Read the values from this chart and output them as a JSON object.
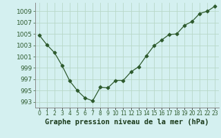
{
  "x": [
    0,
    1,
    2,
    3,
    4,
    5,
    6,
    7,
    8,
    9,
    10,
    11,
    12,
    13,
    14,
    15,
    16,
    17,
    18,
    19,
    20,
    21,
    22,
    23
  ],
  "y": [
    1004.8,
    1003.1,
    1001.7,
    999.4,
    996.7,
    995.0,
    993.7,
    993.2,
    995.6,
    995.5,
    996.8,
    996.8,
    998.3,
    999.2,
    1001.1,
    1002.9,
    1003.9,
    1004.9,
    1005.0,
    1006.5,
    1007.2,
    1008.6,
    1009.0,
    1009.9
  ],
  "line_color": "#2d5a2d",
  "marker": "D",
  "bg_color": "#d4f0f0",
  "grid_color": "#b8d8c8",
  "xlabel": "Graphe pression niveau de la mer (hPa)",
  "xlabel_color": "#1a3a1a",
  "ylabel_ticks": [
    993,
    995,
    997,
    999,
    1001,
    1003,
    1005,
    1007,
    1009
  ],
  "ylim": [
    992.0,
    1010.5
  ],
  "xlim": [
    -0.5,
    23.5
  ],
  "tick_color": "#2d5a2d",
  "spine_color": "#888888",
  "tick_fontsize": 6.5,
  "xlabel_fontsize": 7.5,
  "marker_size": 2.5,
  "linewidth": 0.9
}
